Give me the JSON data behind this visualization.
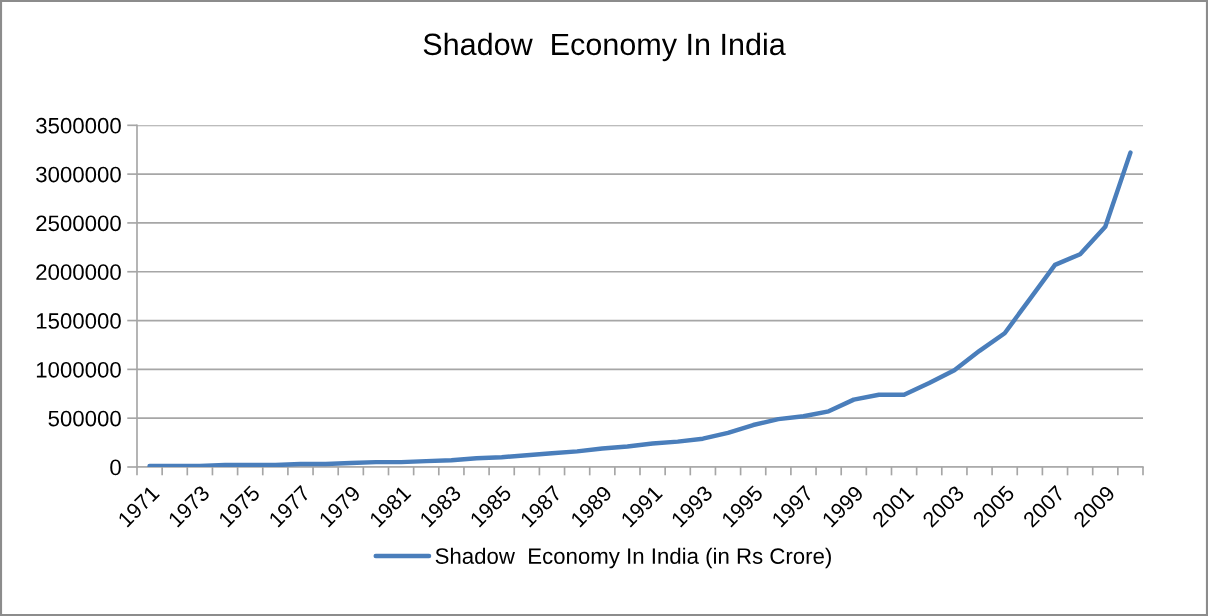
{
  "chart_data": {
    "type": "line",
    "title": "Shadow  Economy In India",
    "categories": [
      "1971",
      null,
      "1973",
      null,
      "1975",
      null,
      "1977",
      null,
      "1979",
      null,
      "1981",
      null,
      "1983",
      null,
      "1985",
      null,
      "1987",
      null,
      "1989",
      null,
      "1991",
      null,
      "1993",
      null,
      "1995",
      null,
      "1997",
      null,
      "1999",
      null,
      "2001",
      null,
      "2003",
      null,
      "2005",
      null,
      "2007",
      null,
      "2009",
      null
    ],
    "series": [
      {
        "name": "Shadow  Economy In India (in Rs Crore)",
        "color": "#4a7ebb",
        "values": [
          10000,
          10000,
          10000,
          20000,
          20000,
          20000,
          30000,
          30000,
          40000,
          50000,
          50000,
          60000,
          70000,
          90000,
          100000,
          120000,
          140000,
          160000,
          190000,
          210000,
          240000,
          260000,
          290000,
          350000,
          430000,
          490000,
          520000,
          570000,
          690000,
          740000,
          740000,
          860000,
          990000,
          1190000,
          1370000,
          1720000,
          2070000,
          2180000,
          2460000,
          3220000
        ]
      }
    ],
    "ylim": [
      0,
      3500000
    ],
    "yticks": [
      0,
      500000,
      1000000,
      1500000,
      2000000,
      2500000,
      3000000,
      3500000
    ],
    "grid": "y",
    "legend": "bottom",
    "marker": "none",
    "line_style": "solid"
  }
}
